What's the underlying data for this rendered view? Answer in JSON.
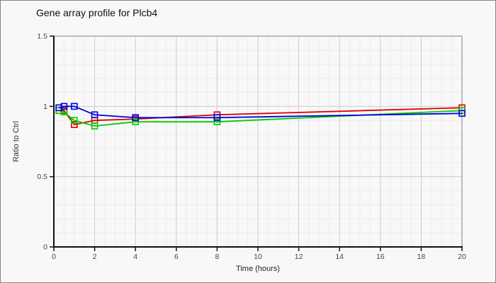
{
  "chart_data": {
    "type": "line",
    "title": "Gene array profile for Plcb4",
    "xlabel": "Time (hours)",
    "ylabel": "Ratio to Ctrl",
    "xlim": [
      0,
      20
    ],
    "ylim": [
      0,
      1.5
    ],
    "x_major_ticks": [
      0,
      2,
      4,
      6,
      8,
      10,
      12,
      14,
      16,
      18,
      20
    ],
    "x_tick_labels": [
      "0",
      "2",
      "4",
      "6",
      "8",
      "10",
      "12",
      "14",
      "16",
      "18",
      "20"
    ],
    "x_minor_step": 0.5,
    "y_major_ticks": [
      0,
      0.5,
      1,
      1.5
    ],
    "y_tick_labels": [
      "0",
      "0.5",
      "1",
      "1.5"
    ],
    "y_minor_step": 0.1,
    "grid": true,
    "legend_position": "none",
    "marker": "open-square",
    "x": [
      0.25,
      0.5,
      1,
      2,
      4,
      8,
      20
    ],
    "series": [
      {
        "name": "red",
        "color": "#dd0000",
        "values": [
          0.97,
          0.97,
          0.87,
          0.9,
          0.91,
          0.94,
          0.99
        ]
      },
      {
        "name": "green",
        "color": "#00cc00",
        "values": [
          0.97,
          0.96,
          0.9,
          0.86,
          0.89,
          0.89,
          0.97
        ]
      },
      {
        "name": "blue",
        "color": "#0000dd",
        "values": [
          0.99,
          1.0,
          1.0,
          0.94,
          0.92,
          0.92,
          0.95
        ]
      }
    ],
    "colors": {
      "grid_major": "#cccccc",
      "grid_minor": "#ececec",
      "axis": "#111111",
      "plot_border": "#bbbbbb",
      "background": "#f8f8f8",
      "tick_label": "#444444"
    }
  }
}
